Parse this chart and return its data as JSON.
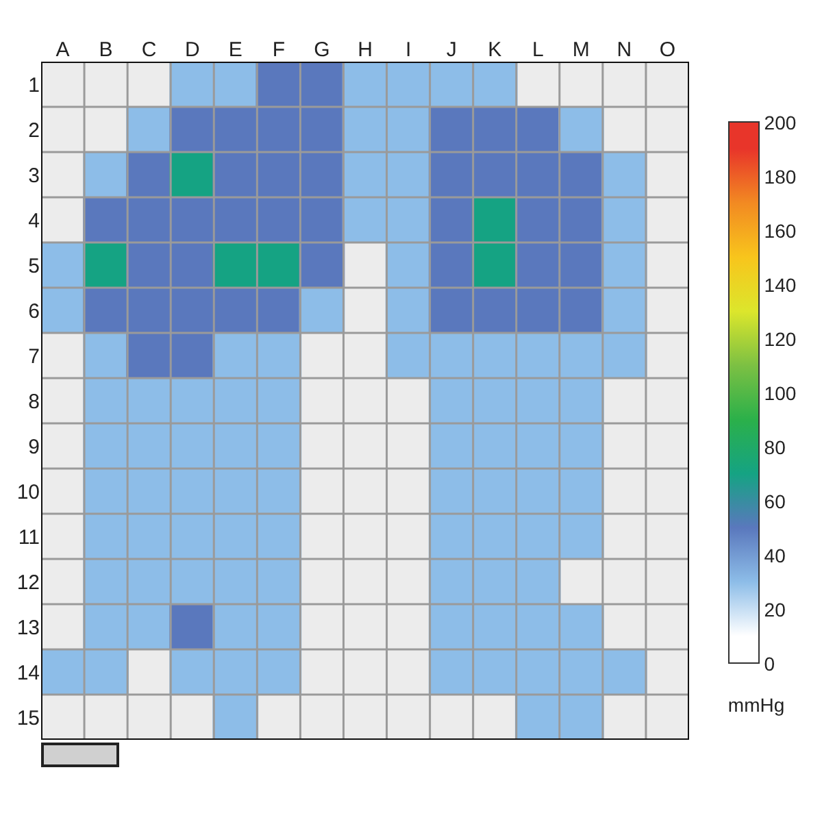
{
  "chart_data": {
    "type": "heatmap",
    "categories": [
      "A",
      "B",
      "C",
      "D",
      "E",
      "F",
      "G",
      "H",
      "I",
      "J",
      "K",
      "L",
      "M",
      "N",
      "O"
    ],
    "y_categories": [
      "1",
      "2",
      "3",
      "4",
      "5",
      "6",
      "7",
      "8",
      "9",
      "10",
      "11",
      "12",
      "13",
      "14",
      "15"
    ],
    "cells": [
      [
        null,
        null,
        null,
        30,
        30,
        50,
        50,
        30,
        30,
        30,
        30,
        null,
        null,
        null,
        null
      ],
      [
        null,
        null,
        30,
        50,
        50,
        50,
        50,
        30,
        30,
        50,
        50,
        50,
        30,
        null,
        null
      ],
      [
        null,
        30,
        50,
        70,
        50,
        50,
        50,
        30,
        30,
        50,
        50,
        50,
        50,
        30,
        null
      ],
      [
        null,
        50,
        50,
        50,
        50,
        50,
        50,
        30,
        30,
        50,
        70,
        50,
        50,
        30,
        null
      ],
      [
        30,
        70,
        50,
        50,
        70,
        70,
        50,
        null,
        30,
        50,
        70,
        50,
        50,
        30,
        null
      ],
      [
        30,
        50,
        50,
        50,
        50,
        50,
        30,
        null,
        30,
        50,
        50,
        50,
        50,
        30,
        null
      ],
      [
        null,
        30,
        50,
        50,
        30,
        30,
        null,
        null,
        30,
        30,
        30,
        30,
        30,
        30,
        null
      ],
      [
        null,
        30,
        30,
        30,
        30,
        30,
        null,
        null,
        null,
        30,
        30,
        30,
        30,
        null,
        null
      ],
      [
        null,
        30,
        30,
        30,
        30,
        30,
        null,
        null,
        null,
        30,
        30,
        30,
        30,
        null,
        null
      ],
      [
        null,
        30,
        30,
        30,
        30,
        30,
        null,
        null,
        null,
        30,
        30,
        30,
        30,
        null,
        null
      ],
      [
        null,
        30,
        30,
        30,
        30,
        30,
        null,
        null,
        null,
        30,
        30,
        30,
        30,
        null,
        null
      ],
      [
        null,
        30,
        30,
        30,
        30,
        30,
        null,
        null,
        null,
        30,
        30,
        30,
        null,
        null,
        null
      ],
      [
        null,
        30,
        30,
        50,
        30,
        30,
        null,
        null,
        null,
        30,
        30,
        30,
        30,
        null,
        null
      ],
      [
        30,
        30,
        null,
        30,
        30,
        30,
        null,
        null,
        null,
        30,
        30,
        30,
        30,
        30,
        null
      ],
      [
        null,
        null,
        null,
        null,
        30,
        null,
        null,
        null,
        null,
        null,
        null,
        30,
        30,
        null,
        null
      ]
    ],
    "clim": [
      0,
      200
    ],
    "cticks": [
      0,
      20,
      40,
      60,
      80,
      100,
      120,
      140,
      160,
      180,
      200
    ],
    "clabel": "mmHg",
    "grid": true
  }
}
